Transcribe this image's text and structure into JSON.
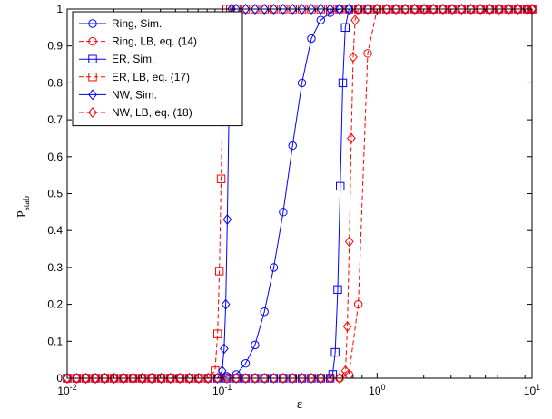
{
  "chart_data": {
    "type": "line",
    "title": "",
    "xlabel": "ε",
    "ylabel": "P",
    "ylabel_subscript": "stab",
    "xscale": "log",
    "xlim": [
      0.01,
      10
    ],
    "ylim": [
      0,
      1
    ],
    "grid": false,
    "legend_position": "top-left",
    "x_ticks": [
      {
        "value": 0.01,
        "base": "10",
        "exp": "-2"
      },
      {
        "value": 0.1,
        "base": "10",
        "exp": "-1"
      },
      {
        "value": 1,
        "base": "10",
        "exp": "0"
      },
      {
        "value": 10,
        "base": "10",
        "exp": "1"
      }
    ],
    "y_ticks": [
      "0",
      "0.1",
      "0.2",
      "0.3",
      "0.4",
      "0.5",
      "0.6",
      "0.7",
      "0.8",
      "0.9",
      "1"
    ],
    "series": [
      {
        "name": "Ring, Sim.",
        "color": "#0000ff",
        "dash": "solid",
        "marker": "circle",
        "x": [
          0.01,
          0.0115,
          0.0132,
          0.0152,
          0.0175,
          0.0201,
          0.0231,
          0.0266,
          0.0305,
          0.0351,
          0.0404,
          0.0464,
          0.0534,
          0.0614,
          0.0706,
          0.0811,
          0.0933,
          0.1073,
          0.1233,
          0.1418,
          0.163,
          0.1874,
          0.2154,
          0.2477,
          0.2848,
          0.3274,
          0.3765,
          0.4329,
          0.4977,
          0.5722,
          0.6579,
          0.7565,
          0.8697,
          1.0,
          1.1498,
          1.3219,
          1.5199,
          1.7475,
          2.0092,
          2.3101,
          2.6561,
          3.0539,
          3.5112,
          4.037,
          4.6416,
          5.3367,
          6.1359,
          7.0548,
          8.1113,
          9.326,
          10.0
        ],
        "y": [
          0,
          0,
          0,
          0,
          0,
          0,
          0,
          0,
          0,
          0,
          0,
          0,
          0,
          0,
          0,
          0,
          0,
          0.005,
          0.01,
          0.04,
          0.09,
          0.18,
          0.3,
          0.45,
          0.63,
          0.8,
          0.92,
          0.97,
          0.99,
          1,
          1,
          1,
          1,
          1,
          1,
          1,
          1,
          1,
          1,
          1,
          1,
          1,
          1,
          1,
          1,
          1,
          1,
          1,
          1,
          1,
          1
        ]
      },
      {
        "name": "Ring, LB, eq. (14)",
        "color": "#ff0000",
        "dash": "dashed",
        "marker": "circle",
        "x": [
          0.01,
          0.0115,
          0.0132,
          0.0152,
          0.0175,
          0.0201,
          0.0231,
          0.0266,
          0.0305,
          0.0351,
          0.0404,
          0.0464,
          0.0534,
          0.0614,
          0.0706,
          0.0811,
          0.0933,
          0.1073,
          0.1233,
          0.1418,
          0.163,
          0.1874,
          0.2154,
          0.2477,
          0.2848,
          0.3274,
          0.3765,
          0.4329,
          0.4977,
          0.5722,
          0.6579,
          0.7565,
          0.8697,
          1.0,
          1.1498,
          1.3219,
          1.5199,
          1.7475,
          2.0092,
          2.3101,
          2.6561,
          3.0539,
          3.5112,
          4.037,
          4.6416,
          5.3367,
          6.1359,
          7.0548,
          8.1113,
          9.326,
          10.0
        ],
        "y": [
          0,
          0,
          0,
          0,
          0,
          0,
          0,
          0,
          0,
          0,
          0,
          0,
          0,
          0,
          0,
          0,
          0,
          0,
          0,
          0,
          0,
          0,
          0,
          0,
          0,
          0,
          0,
          0,
          0,
          0,
          0.01,
          0.2,
          0.88,
          1,
          1,
          1,
          1,
          1,
          1,
          1,
          1,
          1,
          1,
          1,
          1,
          1,
          1,
          1,
          1,
          1,
          1
        ]
      },
      {
        "name": "ER, Sim.",
        "color": "#0000ff",
        "dash": "solid",
        "marker": "square",
        "x": [
          0.01,
          0.0115,
          0.0132,
          0.0152,
          0.0175,
          0.0201,
          0.0231,
          0.0266,
          0.0305,
          0.0351,
          0.0404,
          0.0464,
          0.0534,
          0.0614,
          0.0706,
          0.0811,
          0.0933,
          0.1073,
          0.1233,
          0.1418,
          0.163,
          0.1874,
          0.2154,
          0.2477,
          0.2848,
          0.3274,
          0.3765,
          0.4329,
          0.4977,
          0.5168,
          0.5365,
          0.557,
          0.5782,
          0.6003,
          0.6232,
          0.6579,
          0.7565,
          0.8697,
          1.0,
          1.1498,
          1.3219,
          1.5199,
          1.7475,
          2.0092,
          2.3101,
          2.6561,
          3.0539,
          3.5112,
          4.037,
          4.6416,
          5.3367,
          6.1359,
          7.0548,
          8.1113,
          9.326,
          10.0
        ],
        "y": [
          0,
          0,
          0,
          0,
          0,
          0,
          0,
          0,
          0,
          0,
          0,
          0,
          0,
          0,
          0,
          0,
          0,
          0,
          0,
          0,
          0,
          0,
          0,
          0,
          0,
          0,
          0,
          0,
          0,
          0.01,
          0.07,
          0.24,
          0.52,
          0.8,
          0.95,
          1,
          1,
          1,
          1,
          1,
          1,
          1,
          1,
          1,
          1,
          1,
          1,
          1,
          1,
          1,
          1,
          1,
          1,
          1,
          1,
          1
        ]
      },
      {
        "name": "ER, LB, eq. (17)",
        "color": "#ff0000",
        "dash": "dashed",
        "marker": "square",
        "x": [
          0.01,
          0.0115,
          0.0132,
          0.0152,
          0.0175,
          0.0201,
          0.0231,
          0.0266,
          0.0305,
          0.0351,
          0.0404,
          0.0464,
          0.0534,
          0.0614,
          0.0706,
          0.0811,
          0.09,
          0.0935,
          0.096,
          0.0985,
          0.101,
          0.1035,
          0.107,
          0.113,
          0.1233,
          0.1418,
          0.163,
          0.1874,
          0.2154,
          0.2477,
          0.2848,
          0.3274,
          0.3765,
          0.4329,
          0.4977,
          0.5722,
          0.6579,
          0.7565,
          0.8697,
          1.0,
          1.1498,
          1.3219,
          1.5199,
          1.7475,
          2.0092,
          2.3101,
          2.6561,
          3.0539,
          3.5112,
          4.037,
          4.6416,
          5.3367,
          6.1359,
          7.0548,
          8.1113,
          9.326,
          10.0
        ],
        "y": [
          0,
          0,
          0,
          0,
          0,
          0,
          0,
          0,
          0,
          0,
          0,
          0,
          0,
          0,
          0,
          0,
          0.02,
          0.12,
          0.29,
          0.54,
          0.78,
          0.95,
          1,
          1,
          1,
          1,
          1,
          1,
          1,
          1,
          1,
          1,
          1,
          1,
          1,
          1,
          1,
          1,
          1,
          1,
          1,
          1,
          1,
          1,
          1,
          1,
          1,
          1,
          1,
          1,
          1,
          1,
          1,
          1,
          1,
          1,
          1
        ]
      },
      {
        "name": "NW, Sim.",
        "color": "#0000ff",
        "dash": "solid",
        "marker": "diamond",
        "x": [
          0.01,
          0.0115,
          0.0132,
          0.0152,
          0.0175,
          0.0201,
          0.0231,
          0.0266,
          0.0305,
          0.0351,
          0.0404,
          0.0464,
          0.0534,
          0.0614,
          0.0706,
          0.0811,
          0.0933,
          0.1,
          0.103,
          0.1055,
          0.108,
          0.1105,
          0.115,
          0.1233,
          0.1418,
          0.163,
          0.1874,
          0.2154,
          0.2477,
          0.2848,
          0.3274,
          0.3765,
          0.4329,
          0.4977,
          0.5722,
          0.6579,
          0.7565,
          0.8697,
          1.0,
          1.1498,
          1.3219,
          1.5199,
          1.7475,
          2.0092,
          2.3101,
          2.6561,
          3.0539,
          3.5112,
          4.037,
          4.6416,
          5.3367,
          6.1359,
          7.0548,
          8.1113,
          9.326,
          10.0
        ],
        "y": [
          0,
          0,
          0,
          0,
          0,
          0,
          0,
          0,
          0,
          0,
          0,
          0,
          0,
          0,
          0,
          0,
          0,
          0.02,
          0.08,
          0.2,
          0.43,
          0.7,
          1,
          1,
          1,
          1,
          1,
          1,
          1,
          1,
          1,
          1,
          1,
          1,
          1,
          1,
          1,
          1,
          1,
          1,
          1,
          1,
          1,
          1,
          1,
          1,
          1,
          1,
          1,
          1,
          1,
          1,
          1,
          1,
          1,
          1
        ]
      },
      {
        "name": "NW, LB, eq. (18)",
        "color": "#ff0000",
        "dash": "dashed",
        "marker": "diamond",
        "x": [
          0.01,
          0.0115,
          0.0132,
          0.0152,
          0.0175,
          0.0201,
          0.0231,
          0.0266,
          0.0305,
          0.0351,
          0.0404,
          0.0464,
          0.0534,
          0.0614,
          0.0706,
          0.0811,
          0.0933,
          0.1073,
          0.1233,
          0.1418,
          0.163,
          0.1874,
          0.2154,
          0.2477,
          0.2848,
          0.3274,
          0.3765,
          0.4329,
          0.4977,
          0.5722,
          0.625,
          0.643,
          0.662,
          0.681,
          0.701,
          0.721,
          0.7565,
          0.8697,
          1.0,
          1.1498,
          1.3219,
          1.5199,
          1.7475,
          2.0092,
          2.3101,
          2.6561,
          3.0539,
          3.5112,
          4.037,
          4.6416,
          5.3367,
          6.1359,
          7.0548,
          8.1113,
          9.326,
          10.0
        ],
        "y": [
          0,
          0,
          0,
          0,
          0,
          0,
          0,
          0,
          0,
          0,
          0,
          0,
          0,
          0,
          0,
          0,
          0,
          0,
          0,
          0,
          0,
          0,
          0,
          0,
          0,
          0,
          0,
          0,
          0,
          0,
          0.02,
          0.14,
          0.37,
          0.65,
          0.87,
          0.97,
          1,
          1,
          1,
          1,
          1,
          1,
          1,
          1,
          1,
          1,
          1,
          1,
          1,
          1,
          1,
          1,
          1,
          1,
          1,
          1
        ]
      }
    ]
  }
}
